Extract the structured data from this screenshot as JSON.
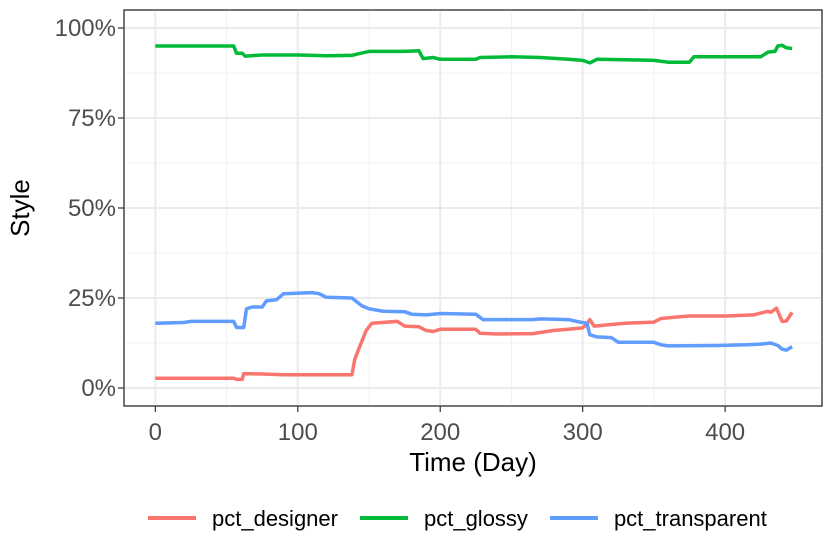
{
  "chart_data": {
    "type": "line",
    "title": "",
    "xlabel": "Time (Day)",
    "ylabel": "Style",
    "xlim": [
      -22,
      468
    ],
    "ylim": [
      -0.05,
      1.05
    ],
    "x_ticks": [
      0,
      100,
      200,
      300,
      400
    ],
    "x_tick_labels": [
      "0",
      "100",
      "200",
      "300",
      "400"
    ],
    "y_ticks": [
      0,
      0.25,
      0.5,
      0.75,
      1.0
    ],
    "y_tick_labels": [
      "0%",
      "25%",
      "50%",
      "75%",
      "100%"
    ],
    "grid": true,
    "legend_position": "bottom",
    "series": [
      {
        "name": "pct_designer",
        "color": "#F8766D",
        "points": [
          [
            0,
            0.027
          ],
          [
            55,
            0.027
          ],
          [
            57,
            0.024
          ],
          [
            61,
            0.024
          ],
          [
            62,
            0.04
          ],
          [
            75,
            0.039
          ],
          [
            90,
            0.037
          ],
          [
            120,
            0.037
          ],
          [
            138,
            0.037
          ],
          [
            140,
            0.08
          ],
          [
            143,
            0.11
          ],
          [
            148,
            0.16
          ],
          [
            152,
            0.18
          ],
          [
            170,
            0.185
          ],
          [
            175,
            0.172
          ],
          [
            185,
            0.17
          ],
          [
            190,
            0.16
          ],
          [
            195,
            0.157
          ],
          [
            200,
            0.163
          ],
          [
            225,
            0.163
          ],
          [
            228,
            0.152
          ],
          [
            240,
            0.15
          ],
          [
            265,
            0.151
          ],
          [
            280,
            0.16
          ],
          [
            290,
            0.163
          ],
          [
            300,
            0.167
          ],
          [
            303,
            0.178
          ],
          [
            305,
            0.19
          ],
          [
            308,
            0.172
          ],
          [
            322,
            0.177
          ],
          [
            330,
            0.18
          ],
          [
            350,
            0.183
          ],
          [
            355,
            0.193
          ],
          [
            365,
            0.197
          ],
          [
            375,
            0.2
          ],
          [
            400,
            0.2
          ],
          [
            420,
            0.203
          ],
          [
            425,
            0.208
          ],
          [
            430,
            0.213
          ],
          [
            432,
            0.21
          ],
          [
            436,
            0.222
          ],
          [
            440,
            0.185
          ],
          [
            443,
            0.186
          ],
          [
            447,
            0.21
          ]
        ]
      },
      {
        "name": "pct_glossy",
        "color": "#00BA38",
        "points": [
          [
            0,
            0.95
          ],
          [
            55,
            0.95
          ],
          [
            57,
            0.93
          ],
          [
            61,
            0.93
          ],
          [
            63,
            0.922
          ],
          [
            75,
            0.925
          ],
          [
            100,
            0.925
          ],
          [
            120,
            0.923
          ],
          [
            138,
            0.924
          ],
          [
            142,
            0.928
          ],
          [
            150,
            0.935
          ],
          [
            175,
            0.935
          ],
          [
            185,
            0.937
          ],
          [
            188,
            0.915
          ],
          [
            195,
            0.918
          ],
          [
            200,
            0.913
          ],
          [
            225,
            0.913
          ],
          [
            228,
            0.918
          ],
          [
            250,
            0.92
          ],
          [
            270,
            0.918
          ],
          [
            290,
            0.913
          ],
          [
            300,
            0.91
          ],
          [
            305,
            0.903
          ],
          [
            310,
            0.913
          ],
          [
            330,
            0.912
          ],
          [
            350,
            0.91
          ],
          [
            360,
            0.905
          ],
          [
            375,
            0.905
          ],
          [
            378,
            0.92
          ],
          [
            400,
            0.92
          ],
          [
            425,
            0.92
          ],
          [
            430,
            0.933
          ],
          [
            435,
            0.935
          ],
          [
            437,
            0.95
          ],
          [
            440,
            0.952
          ],
          [
            443,
            0.945
          ],
          [
            447,
            0.943
          ]
        ]
      },
      {
        "name": "pct_transparent",
        "color": "#619CFF",
        "points": [
          [
            0,
            0.18
          ],
          [
            20,
            0.182
          ],
          [
            25,
            0.185
          ],
          [
            55,
            0.185
          ],
          [
            57,
            0.168
          ],
          [
            62,
            0.168
          ],
          [
            64,
            0.22
          ],
          [
            68,
            0.225
          ],
          [
            75,
            0.225
          ],
          [
            78,
            0.242
          ],
          [
            85,
            0.245
          ],
          [
            90,
            0.262
          ],
          [
            110,
            0.265
          ],
          [
            115,
            0.262
          ],
          [
            120,
            0.252
          ],
          [
            138,
            0.25
          ],
          [
            145,
            0.228
          ],
          [
            150,
            0.22
          ],
          [
            160,
            0.213
          ],
          [
            175,
            0.212
          ],
          [
            180,
            0.205
          ],
          [
            190,
            0.203
          ],
          [
            195,
            0.205
          ],
          [
            200,
            0.207
          ],
          [
            225,
            0.205
          ],
          [
            230,
            0.19
          ],
          [
            265,
            0.19
          ],
          [
            270,
            0.192
          ],
          [
            290,
            0.19
          ],
          [
            298,
            0.183
          ],
          [
            303,
            0.18
          ],
          [
            305,
            0.148
          ],
          [
            310,
            0.142
          ],
          [
            320,
            0.14
          ],
          [
            325,
            0.127
          ],
          [
            350,
            0.127
          ],
          [
            355,
            0.12
          ],
          [
            360,
            0.117
          ],
          [
            395,
            0.118
          ],
          [
            415,
            0.12
          ],
          [
            425,
            0.122
          ],
          [
            432,
            0.125
          ],
          [
            437,
            0.118
          ],
          [
            440,
            0.108
          ],
          [
            443,
            0.105
          ],
          [
            447,
            0.115
          ]
        ]
      }
    ]
  }
}
